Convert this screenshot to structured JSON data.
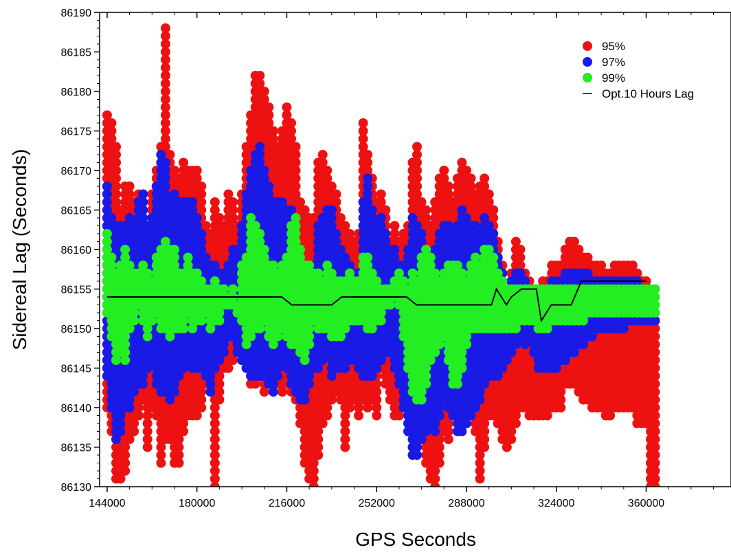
{
  "chart_data": {
    "type": "scatter",
    "title": "",
    "xlabel": "GPS Seconds",
    "ylabel": "Sidereal Lag (Seconds)",
    "xlim": [
      141000,
      394000
    ],
    "ylim": [
      86130,
      86190
    ],
    "x_ticks": [
      144000,
      180000,
      216000,
      252000,
      288000,
      324000,
      360000
    ],
    "x_tick_labels": [
      "144000",
      "180000",
      "216000",
      "252000",
      "288000",
      "324000",
      "360000"
    ],
    "y_ticks": [
      86130,
      86135,
      86140,
      86145,
      86150,
      86155,
      86160,
      86165,
      86170,
      86175,
      86180,
      86185,
      86190
    ],
    "y_tick_labels": [
      "86130",
      "86135",
      "86140",
      "86145",
      "86150",
      "86155",
      "86160",
      "86165",
      "86170",
      "86175",
      "86180",
      "86185",
      "86190"
    ],
    "x_step": 1800,
    "legend": {
      "placement": "top-right",
      "entries": [
        {
          "label": "95%",
          "color": "#ee1111",
          "marker": "dot"
        },
        {
          "label": "97%",
          "color": "#1a1ae6",
          "marker": "dot"
        },
        {
          "label": "99%",
          "color": "#22ee22",
          "marker": "dot"
        },
        {
          "label": "Opt.10 Hours Lag",
          "color": "#000000",
          "marker": "line"
        }
      ]
    },
    "series": [
      {
        "label": "95%",
        "color": "#ee1111",
        "lower": [
          86140,
          86137,
          86131,
          86131,
          86132,
          86136,
          86137,
          86139,
          86141,
          86135,
          86140,
          86139,
          86133,
          86136,
          86136,
          86133,
          86133,
          86137,
          86139,
          86139,
          86139,
          86140,
          86143,
          86144,
          86130,
          86141,
          86145,
          86145,
          86146,
          86148,
          86146,
          86145,
          86143,
          86143,
          86144,
          86142,
          86143,
          86143,
          86143,
          86142,
          86143,
          86142,
          86141,
          86138,
          86133,
          86131,
          86130,
          86134,
          86138,
          86139,
          86141,
          86142,
          86141,
          86135,
          86140,
          86141,
          86139,
          86141,
          86140,
          86141,
          86139,
          86145,
          86143,
          86141,
          86139,
          86139,
          86144,
          86143,
          86138,
          86136,
          86136,
          86133,
          86131,
          86129,
          86133,
          86137,
          86136,
          86140,
          86140,
          86138,
          86142,
          86140,
          86137,
          86131,
          86135,
          86139,
          86139,
          86138,
          86136,
          86135,
          86136,
          86138,
          86140,
          86140,
          86139,
          86139,
          86139,
          86139,
          86139,
          86140,
          86140,
          86140,
          86143,
          86143,
          86143,
          86142,
          86141,
          86141,
          86140,
          86140,
          86140,
          86139,
          86139,
          86140,
          86140,
          86140,
          86140,
          86140,
          86138,
          86138,
          86138,
          86130,
          86129
        ],
        "upper": [
          86177,
          86176,
          86173,
          86165,
          86168,
          86168,
          86166,
          86167,
          86167,
          86163,
          86167,
          86170,
          86173,
          86188,
          86172,
          86170,
          86169,
          86171,
          86170,
          86170,
          86170,
          86168,
          86163,
          86162,
          86166,
          86164,
          86163,
          86167,
          86166,
          86163,
          86167,
          86173,
          86177,
          86182,
          86182,
          86180,
          86178,
          86175,
          86173,
          86175,
          86178,
          86176,
          86173,
          86166,
          86165,
          86164,
          86164,
          86171,
          86172,
          86170,
          86168,
          86167,
          86164,
          86163,
          86162,
          86161,
          86162,
          86176,
          86172,
          86169,
          86166,
          86167,
          86165,
          86161,
          86163,
          86161,
          86162,
          86163,
          86171,
          86173,
          86166,
          86165,
          86163,
          86166,
          86169,
          86170,
          86168,
          86166,
          86169,
          86171,
          86170,
          86169,
          86167,
          86168,
          86169,
          86167,
          86165,
          86161,
          86158,
          86155,
          86157,
          86161,
          86160,
          86157,
          86156,
          86155,
          86155,
          86156,
          86156,
          86158,
          86158,
          86158,
          86160,
          86161,
          86161,
          86160,
          86159,
          86159,
          86158,
          86158,
          86158,
          86157,
          86157,
          86158,
          86158,
          86158,
          86158,
          86158,
          86157,
          86156,
          86156,
          86152,
          86151
        ]
      },
      {
        "label": "97%",
        "color": "#1a1ae6",
        "lower": [
          86144,
          86140,
          86136,
          86137,
          86140,
          86140,
          86142,
          86143,
          86143,
          86145,
          86146,
          86143,
          86142,
          86142,
          86141,
          86142,
          86144,
          86145,
          86146,
          86145,
          86145,
          86145,
          86144,
          86142,
          86145,
          86146,
          86147,
          86149,
          86149,
          86147,
          86146,
          86145,
          86144,
          86144,
          86144,
          86144,
          86143,
          86142,
          86144,
          86146,
          86145,
          86143,
          86142,
          86141,
          86141,
          86143,
          86145,
          86145,
          86146,
          86147,
          86144,
          86145,
          86145,
          86145,
          86146,
          86146,
          86145,
          86144,
          86144,
          86144,
          86145,
          86146,
          86147,
          86147,
          86145,
          86143,
          86140,
          86137,
          86134,
          86134,
          86136,
          86137,
          86138,
          86137,
          86139,
          86141,
          86140,
          86139,
          86137,
          86137,
          86138,
          86139,
          86140,
          86141,
          86143,
          86144,
          86144,
          86144,
          86145,
          86146,
          86147,
          86148,
          86149,
          86148,
          86149,
          86147,
          86145,
          86145,
          86145,
          86145,
          86145,
          86146,
          86146,
          86147,
          86147,
          86148,
          86148,
          86149,
          86149,
          86150,
          86150,
          86150,
          86150,
          86150,
          86150,
          86150,
          86151,
          86151,
          86151,
          86151,
          86151,
          86151,
          86151
        ],
        "upper": [
          86168,
          86164,
          86163,
          86163,
          86163,
          86164,
          86163,
          86166,
          86167,
          86163,
          86164,
          86168,
          86172,
          86171,
          86166,
          86167,
          86166,
          86166,
          86166,
          86166,
          86164,
          86162,
          86159,
          86158,
          86158,
          86157,
          86157,
          86158,
          86160,
          86160,
          86163,
          86167,
          86170,
          86172,
          86173,
          86170,
          86168,
          86166,
          86166,
          86166,
          86165,
          86165,
          86163,
          86160,
          86158,
          86157,
          86158,
          86163,
          86164,
          86165,
          86165,
          86162,
          86160,
          86159,
          86158,
          86157,
          86157,
          86166,
          86169,
          86165,
          86163,
          86164,
          86162,
          86160,
          86160,
          86158,
          86158,
          86160,
          86164,
          86163,
          86162,
          86160,
          86159,
          86160,
          86162,
          86163,
          86163,
          86162,
          86163,
          86165,
          86164,
          86163,
          86163,
          86162,
          86164,
          86163,
          86162,
          86159,
          86157,
          86155,
          86156,
          86157,
          86157,
          86156,
          86155,
          86155,
          86155,
          86155,
          86155,
          86156,
          86156,
          86156,
          86157,
          86157,
          86157,
          86157,
          86157,
          86157,
          86156,
          86156,
          86156,
          86156,
          86156,
          86156,
          86156,
          86156,
          86156,
          86156,
          86156,
          86155,
          86155,
          86153,
          86152
        ]
      },
      {
        "label": "99%",
        "color": "#22ee22",
        "lower": [
          86152,
          86149,
          86146,
          86147,
          86146,
          86150,
          86151,
          86153,
          86151,
          86149,
          86151,
          86152,
          86150,
          86150,
          86149,
          86150,
          86150,
          86150,
          86152,
          86150,
          86151,
          86151,
          86152,
          86150,
          86151,
          86151,
          86153,
          86153,
          86153,
          86152,
          86151,
          86148,
          86149,
          86150,
          86150,
          86151,
          86149,
          86148,
          86149,
          86150,
          86149,
          86148,
          86148,
          86147,
          86146,
          86148,
          86151,
          86150,
          86150,
          86150,
          86149,
          86149,
          86149,
          86150,
          86151,
          86151,
          86151,
          86151,
          86150,
          86150,
          86151,
          86151,
          86153,
          86153,
          86154,
          86153,
          86149,
          86145,
          86142,
          86141,
          86141,
          86143,
          86146,
          86147,
          86148,
          86149,
          86146,
          86143,
          86143,
          86145,
          86148,
          86150,
          86150,
          86150,
          86150,
          86150,
          86150,
          86150,
          86150,
          86150,
          86150,
          86150,
          86151,
          86151,
          86151,
          86151,
          86150,
          86150,
          86150,
          86151,
          86151,
          86151,
          86151,
          86151,
          86151,
          86151,
          86151,
          86152,
          86152,
          86152,
          86152,
          86152,
          86152,
          86152,
          86152,
          86152,
          86152,
          86152,
          86152,
          86152,
          86152,
          86152,
          86152
        ],
        "upper": [
          86162,
          86159,
          86157,
          86158,
          86160,
          86158,
          86157,
          86157,
          86158,
          86157,
          86156,
          86159,
          86160,
          86161,
          86160,
          86160,
          86157,
          86157,
          86159,
          86157,
          86157,
          86156,
          86155,
          86155,
          86156,
          86155,
          86155,
          86154,
          86155,
          86153,
          86158,
          86159,
          86164,
          86163,
          86162,
          86160,
          86158,
          86158,
          86157,
          86158,
          86159,
          86163,
          86164,
          86160,
          86158,
          86158,
          86157,
          86157,
          86156,
          86158,
          86157,
          86156,
          86156,
          86156,
          86157,
          86156,
          86156,
          86159,
          86159,
          86157,
          86156,
          86155,
          86155,
          86155,
          86156,
          86157,
          86156,
          86155,
          86157,
          86156,
          86159,
          86160,
          86159,
          86157,
          86156,
          86157,
          86158,
          86158,
          86158,
          86157,
          86156,
          86158,
          86159,
          86158,
          86160,
          86160,
          86159,
          86157,
          86156,
          86155,
          86155,
          86155,
          86155,
          86155,
          86155,
          86155,
          86155,
          86155,
          86155,
          86155,
          86155,
          86155,
          86155,
          86155,
          86155,
          86155,
          86155,
          86155,
          86155,
          86155,
          86155,
          86155,
          86155,
          86155,
          86155,
          86155,
          86155,
          86155,
          86155,
          86155,
          86155,
          86155,
          86155
        ]
      }
    ],
    "line": {
      "label": "Opt.10 Hours Lag",
      "color": "#000000",
      "points": [
        [
          144000,
          86154
        ],
        [
          214000,
          86154
        ],
        [
          218000,
          86153
        ],
        [
          234000,
          86153
        ],
        [
          238000,
          86154
        ],
        [
          264000,
          86154
        ],
        [
          268000,
          86153
        ],
        [
          292000,
          86153
        ],
        [
          298000,
          86153
        ],
        [
          300000,
          86155
        ],
        [
          304000,
          86153
        ],
        [
          306000,
          86154
        ],
        [
          310000,
          86155
        ],
        [
          316000,
          86155
        ],
        [
          318000,
          86151
        ],
        [
          322000,
          86153
        ],
        [
          330000,
          86153
        ],
        [
          334000,
          86156
        ],
        [
          360000,
          86156
        ]
      ]
    }
  }
}
